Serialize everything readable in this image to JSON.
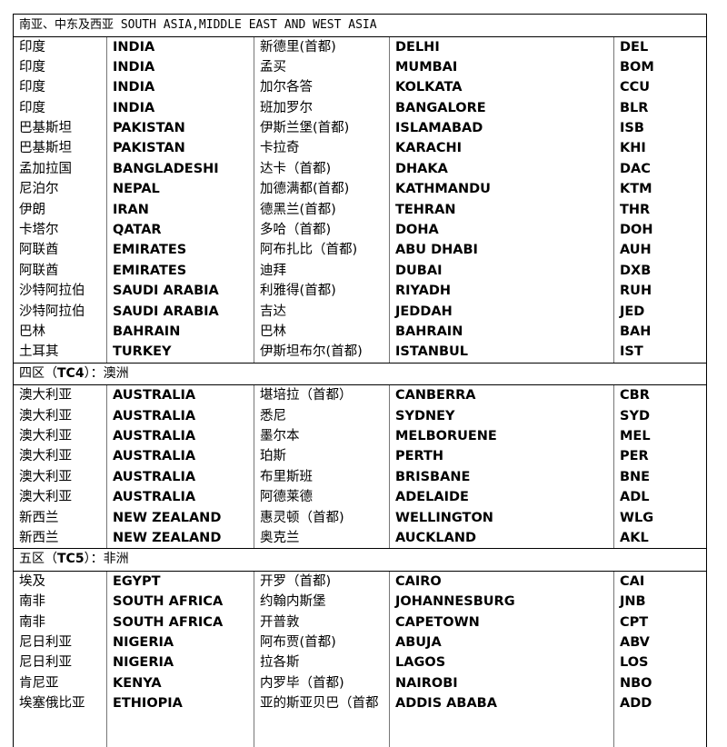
{
  "sections": [
    {
      "header": "南亚、中东及西亚 SOUTH ASIA,MIDDLE EAST AND WEST ASIA",
      "rows": [
        [
          "印度",
          "INDIA",
          "新德里(首都)",
          "DELHI",
          "DEL"
        ],
        [
          "印度",
          "INDIA",
          "孟买",
          "MUMBAI",
          "BOM"
        ],
        [
          "印度",
          "INDIA",
          "加尔各答",
          "KOLKATA",
          "CCU"
        ],
        [
          "印度",
          "INDIA",
          "班加罗尔",
          "BANGALORE",
          "BLR"
        ],
        [
          "巴基斯坦",
          "PAKISTAN",
          "伊斯兰堡(首都)",
          "ISLAMABAD",
          "ISB"
        ],
        [
          "巴基斯坦",
          "PAKISTAN",
          "卡拉奇",
          "KARACHI",
          "KHI"
        ],
        [
          "孟加拉国",
          "BANGLADESHI",
          "达卡（首都)",
          "DHAKA",
          "DAC"
        ],
        [
          "尼泊尔",
          "NEPAL",
          "加德满都(首都)",
          "KATHMANDU",
          "KTM"
        ],
        [
          "伊朗",
          "IRAN",
          "德黑兰(首都)",
          "TEHRAN",
          "THR"
        ],
        [
          "卡塔尔",
          "QATAR",
          "多哈（首都)",
          "DOHA",
          "DOH"
        ],
        [
          "阿联酋",
          "EMIRATES",
          "阿布扎比（首都)",
          "ABU DHABI",
          "AUH"
        ],
        [
          "阿联酋",
          "EMIRATES",
          "迪拜",
          "DUBAI",
          "DXB"
        ],
        [
          "沙特阿拉伯",
          "SAUDI ARABIA",
          "利雅得(首都)",
          "RIYADH",
          "RUH"
        ],
        [
          "沙特阿拉伯",
          "SAUDI ARABIA",
          "吉达",
          "JEDDAH",
          "JED"
        ],
        [
          "巴林",
          "BAHRAIN",
          "巴林",
          "BAHRAIN",
          "BAH"
        ],
        [
          "土耳其",
          "TURKEY",
          "伊斯坦布尔(首都)",
          "ISTANBUL",
          "IST"
        ]
      ]
    },
    {
      "header_pre": "四区（",
      "header_code": "TC4",
      "header_post": "）：澳洲",
      "rows": [
        [
          "澳大利亚",
          "AUSTRALIA",
          "堪培拉（首都）",
          "CANBERRA",
          "CBR"
        ],
        [
          "澳大利亚",
          "AUSTRALIA",
          "悉尼",
          "SYDNEY",
          "SYD"
        ],
        [
          "澳大利亚",
          "AUSTRALIA",
          "墨尔本",
          "MELBORUENE",
          "MEL"
        ],
        [
          "澳大利亚",
          "AUSTRALIA",
          "珀斯",
          "PERTH",
          "PER"
        ],
        [
          "澳大利亚",
          "AUSTRALIA",
          "布里斯班",
          "BRISBANE",
          "BNE"
        ],
        [
          "澳大利亚",
          "AUSTRALIA",
          "阿德莱德",
          "ADELAIDE",
          "ADL"
        ],
        [
          "新西兰",
          "NEW ZEALAND",
          "惠灵顿（首都)",
          "WELLINGTON",
          "WLG"
        ],
        [
          "新西兰",
          "NEW ZEALAND",
          "奥克兰",
          "AUCKLAND",
          "AKL"
        ]
      ]
    },
    {
      "header_pre": "五区（",
      "header_code": "TC5",
      "header_post": "）：非洲",
      "rows": [
        [
          "埃及",
          "EGYPT",
          "开罗（首都)",
          "CAIRO",
          "CAI"
        ],
        [
          "南非",
          "SOUTH AFRICA",
          "约翰内斯堡",
          "JOHANNESBURG",
          "JNB"
        ],
        [
          "南非",
          "SOUTH AFRICA",
          "开普敦",
          "CAPETOWN",
          "CPT"
        ],
        [
          "尼日利亚",
          "NIGERIA",
          "阿布贾(首都)",
          "ABUJA",
          "ABV"
        ],
        [
          "尼日利亚",
          "NIGERIA",
          "拉各斯",
          "LAGOS",
          "LOS"
        ],
        [
          "肯尼亚",
          "KENYA",
          "内罗毕（首都)",
          "NAIROBI",
          "NBO"
        ],
        [
          "埃塞俄比亚",
          "ETHIOPIA",
          "亚的斯亚贝巴（首都",
          "ADDIS ABABA",
          "ADD"
        ]
      ]
    }
  ]
}
